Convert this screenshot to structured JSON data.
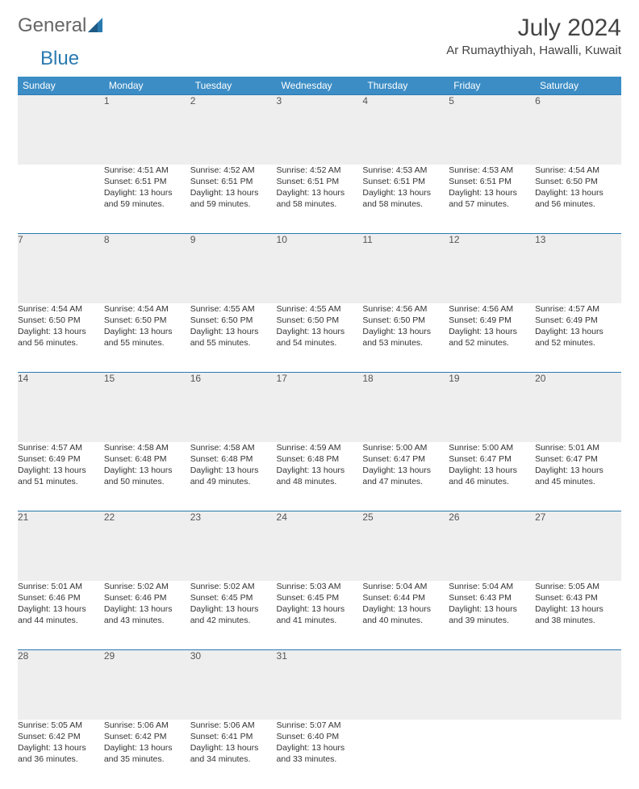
{
  "brand": {
    "part1": "General",
    "part2": "Blue"
  },
  "title": "July 2024",
  "location": "Ar Rumaythiyah, Hawalli, Kuwait",
  "styling": {
    "header_bg": "#3c8dc5",
    "header_text": "#ffffff",
    "daynum_bg": "#eeeeee",
    "row_border": "#2a7ab0",
    "body_text": "#333333",
    "title_color": "#444444",
    "logo_color": "#2a7ab0",
    "font_family": "Arial",
    "month_title_size_pt": 22,
    "location_size_pt": 11,
    "cell_font_size_pt": 8
  },
  "weekdays": [
    "Sunday",
    "Monday",
    "Tuesday",
    "Wednesday",
    "Thursday",
    "Friday",
    "Saturday"
  ],
  "weeks": [
    [
      {
        "num": "",
        "lines": [
          "",
          "",
          "",
          ""
        ]
      },
      {
        "num": "1",
        "lines": [
          "Sunrise: 4:51 AM",
          "Sunset: 6:51 PM",
          "Daylight: 13 hours",
          "and 59 minutes."
        ]
      },
      {
        "num": "2",
        "lines": [
          "Sunrise: 4:52 AM",
          "Sunset: 6:51 PM",
          "Daylight: 13 hours",
          "and 59 minutes."
        ]
      },
      {
        "num": "3",
        "lines": [
          "Sunrise: 4:52 AM",
          "Sunset: 6:51 PM",
          "Daylight: 13 hours",
          "and 58 minutes."
        ]
      },
      {
        "num": "4",
        "lines": [
          "Sunrise: 4:53 AM",
          "Sunset: 6:51 PM",
          "Daylight: 13 hours",
          "and 58 minutes."
        ]
      },
      {
        "num": "5",
        "lines": [
          "Sunrise: 4:53 AM",
          "Sunset: 6:51 PM",
          "Daylight: 13 hours",
          "and 57 minutes."
        ]
      },
      {
        "num": "6",
        "lines": [
          "Sunrise: 4:54 AM",
          "Sunset: 6:50 PM",
          "Daylight: 13 hours",
          "and 56 minutes."
        ]
      }
    ],
    [
      {
        "num": "7",
        "lines": [
          "Sunrise: 4:54 AM",
          "Sunset: 6:50 PM",
          "Daylight: 13 hours",
          "and 56 minutes."
        ]
      },
      {
        "num": "8",
        "lines": [
          "Sunrise: 4:54 AM",
          "Sunset: 6:50 PM",
          "Daylight: 13 hours",
          "and 55 minutes."
        ]
      },
      {
        "num": "9",
        "lines": [
          "Sunrise: 4:55 AM",
          "Sunset: 6:50 PM",
          "Daylight: 13 hours",
          "and 55 minutes."
        ]
      },
      {
        "num": "10",
        "lines": [
          "Sunrise: 4:55 AM",
          "Sunset: 6:50 PM",
          "Daylight: 13 hours",
          "and 54 minutes."
        ]
      },
      {
        "num": "11",
        "lines": [
          "Sunrise: 4:56 AM",
          "Sunset: 6:50 PM",
          "Daylight: 13 hours",
          "and 53 minutes."
        ]
      },
      {
        "num": "12",
        "lines": [
          "Sunrise: 4:56 AM",
          "Sunset: 6:49 PM",
          "Daylight: 13 hours",
          "and 52 minutes."
        ]
      },
      {
        "num": "13",
        "lines": [
          "Sunrise: 4:57 AM",
          "Sunset: 6:49 PM",
          "Daylight: 13 hours",
          "and 52 minutes."
        ]
      }
    ],
    [
      {
        "num": "14",
        "lines": [
          "Sunrise: 4:57 AM",
          "Sunset: 6:49 PM",
          "Daylight: 13 hours",
          "and 51 minutes."
        ]
      },
      {
        "num": "15",
        "lines": [
          "Sunrise: 4:58 AM",
          "Sunset: 6:48 PM",
          "Daylight: 13 hours",
          "and 50 minutes."
        ]
      },
      {
        "num": "16",
        "lines": [
          "Sunrise: 4:58 AM",
          "Sunset: 6:48 PM",
          "Daylight: 13 hours",
          "and 49 minutes."
        ]
      },
      {
        "num": "17",
        "lines": [
          "Sunrise: 4:59 AM",
          "Sunset: 6:48 PM",
          "Daylight: 13 hours",
          "and 48 minutes."
        ]
      },
      {
        "num": "18",
        "lines": [
          "Sunrise: 5:00 AM",
          "Sunset: 6:47 PM",
          "Daylight: 13 hours",
          "and 47 minutes."
        ]
      },
      {
        "num": "19",
        "lines": [
          "Sunrise: 5:00 AM",
          "Sunset: 6:47 PM",
          "Daylight: 13 hours",
          "and 46 minutes."
        ]
      },
      {
        "num": "20",
        "lines": [
          "Sunrise: 5:01 AM",
          "Sunset: 6:47 PM",
          "Daylight: 13 hours",
          "and 45 minutes."
        ]
      }
    ],
    [
      {
        "num": "21",
        "lines": [
          "Sunrise: 5:01 AM",
          "Sunset: 6:46 PM",
          "Daylight: 13 hours",
          "and 44 minutes."
        ]
      },
      {
        "num": "22",
        "lines": [
          "Sunrise: 5:02 AM",
          "Sunset: 6:46 PM",
          "Daylight: 13 hours",
          "and 43 minutes."
        ]
      },
      {
        "num": "23",
        "lines": [
          "Sunrise: 5:02 AM",
          "Sunset: 6:45 PM",
          "Daylight: 13 hours",
          "and 42 minutes."
        ]
      },
      {
        "num": "24",
        "lines": [
          "Sunrise: 5:03 AM",
          "Sunset: 6:45 PM",
          "Daylight: 13 hours",
          "and 41 minutes."
        ]
      },
      {
        "num": "25",
        "lines": [
          "Sunrise: 5:04 AM",
          "Sunset: 6:44 PM",
          "Daylight: 13 hours",
          "and 40 minutes."
        ]
      },
      {
        "num": "26",
        "lines": [
          "Sunrise: 5:04 AM",
          "Sunset: 6:43 PM",
          "Daylight: 13 hours",
          "and 39 minutes."
        ]
      },
      {
        "num": "27",
        "lines": [
          "Sunrise: 5:05 AM",
          "Sunset: 6:43 PM",
          "Daylight: 13 hours",
          "and 38 minutes."
        ]
      }
    ],
    [
      {
        "num": "28",
        "lines": [
          "Sunrise: 5:05 AM",
          "Sunset: 6:42 PM",
          "Daylight: 13 hours",
          "and 36 minutes."
        ]
      },
      {
        "num": "29",
        "lines": [
          "Sunrise: 5:06 AM",
          "Sunset: 6:42 PM",
          "Daylight: 13 hours",
          "and 35 minutes."
        ]
      },
      {
        "num": "30",
        "lines": [
          "Sunrise: 5:06 AM",
          "Sunset: 6:41 PM",
          "Daylight: 13 hours",
          "and 34 minutes."
        ]
      },
      {
        "num": "31",
        "lines": [
          "Sunrise: 5:07 AM",
          "Sunset: 6:40 PM",
          "Daylight: 13 hours",
          "and 33 minutes."
        ]
      },
      {
        "num": "",
        "lines": [
          "",
          "",
          "",
          ""
        ]
      },
      {
        "num": "",
        "lines": [
          "",
          "",
          "",
          ""
        ]
      },
      {
        "num": "",
        "lines": [
          "",
          "",
          "",
          ""
        ]
      }
    ]
  ]
}
